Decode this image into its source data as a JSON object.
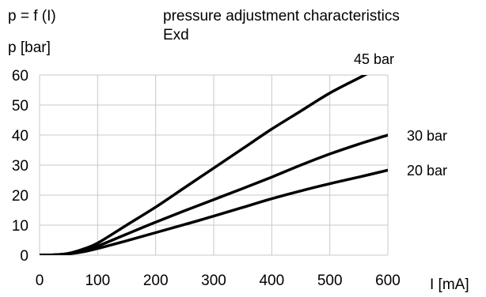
{
  "chart_data": {
    "type": "line",
    "formula": "p = f (I)",
    "ylabel": "p [bar]",
    "title": "pressure adjustment characteristics",
    "subtitle": "Exd",
    "xlabel": "I [mA]",
    "xlim": [
      0,
      600
    ],
    "ylim": [
      0,
      60
    ],
    "x_ticks": [
      0,
      100,
      200,
      300,
      400,
      500,
      600
    ],
    "y_ticks": [
      0,
      10,
      20,
      30,
      40,
      50,
      60
    ],
    "grid": true,
    "series": [
      {
        "name": "45 bar",
        "x": [
          0,
          25,
          50,
          75,
          100,
          150,
          200,
          250,
          300,
          350,
          400,
          450,
          500,
          550,
          570
        ],
        "y": [
          0,
          0.1,
          0.6,
          2,
          4,
          10,
          16,
          22.5,
          29,
          35.5,
          42,
          48,
          54,
          59,
          61
        ]
      },
      {
        "name": "30 bar",
        "x": [
          0,
          25,
          50,
          75,
          100,
          150,
          200,
          250,
          300,
          350,
          400,
          450,
          500,
          550,
          600
        ],
        "y": [
          0,
          0.1,
          0.5,
          1.6,
          3,
          7,
          11,
          14.8,
          18.5,
          22.2,
          26,
          30,
          33.7,
          37,
          40
        ]
      },
      {
        "name": "20 bar",
        "x": [
          0,
          25,
          50,
          75,
          100,
          150,
          200,
          250,
          300,
          350,
          400,
          450,
          500,
          550,
          600
        ],
        "y": [
          0,
          0.1,
          0.4,
          1.1,
          2.2,
          4.8,
          7.5,
          10.2,
          13,
          15.9,
          18.8,
          21.4,
          23.8,
          26,
          28.3
        ]
      }
    ]
  }
}
